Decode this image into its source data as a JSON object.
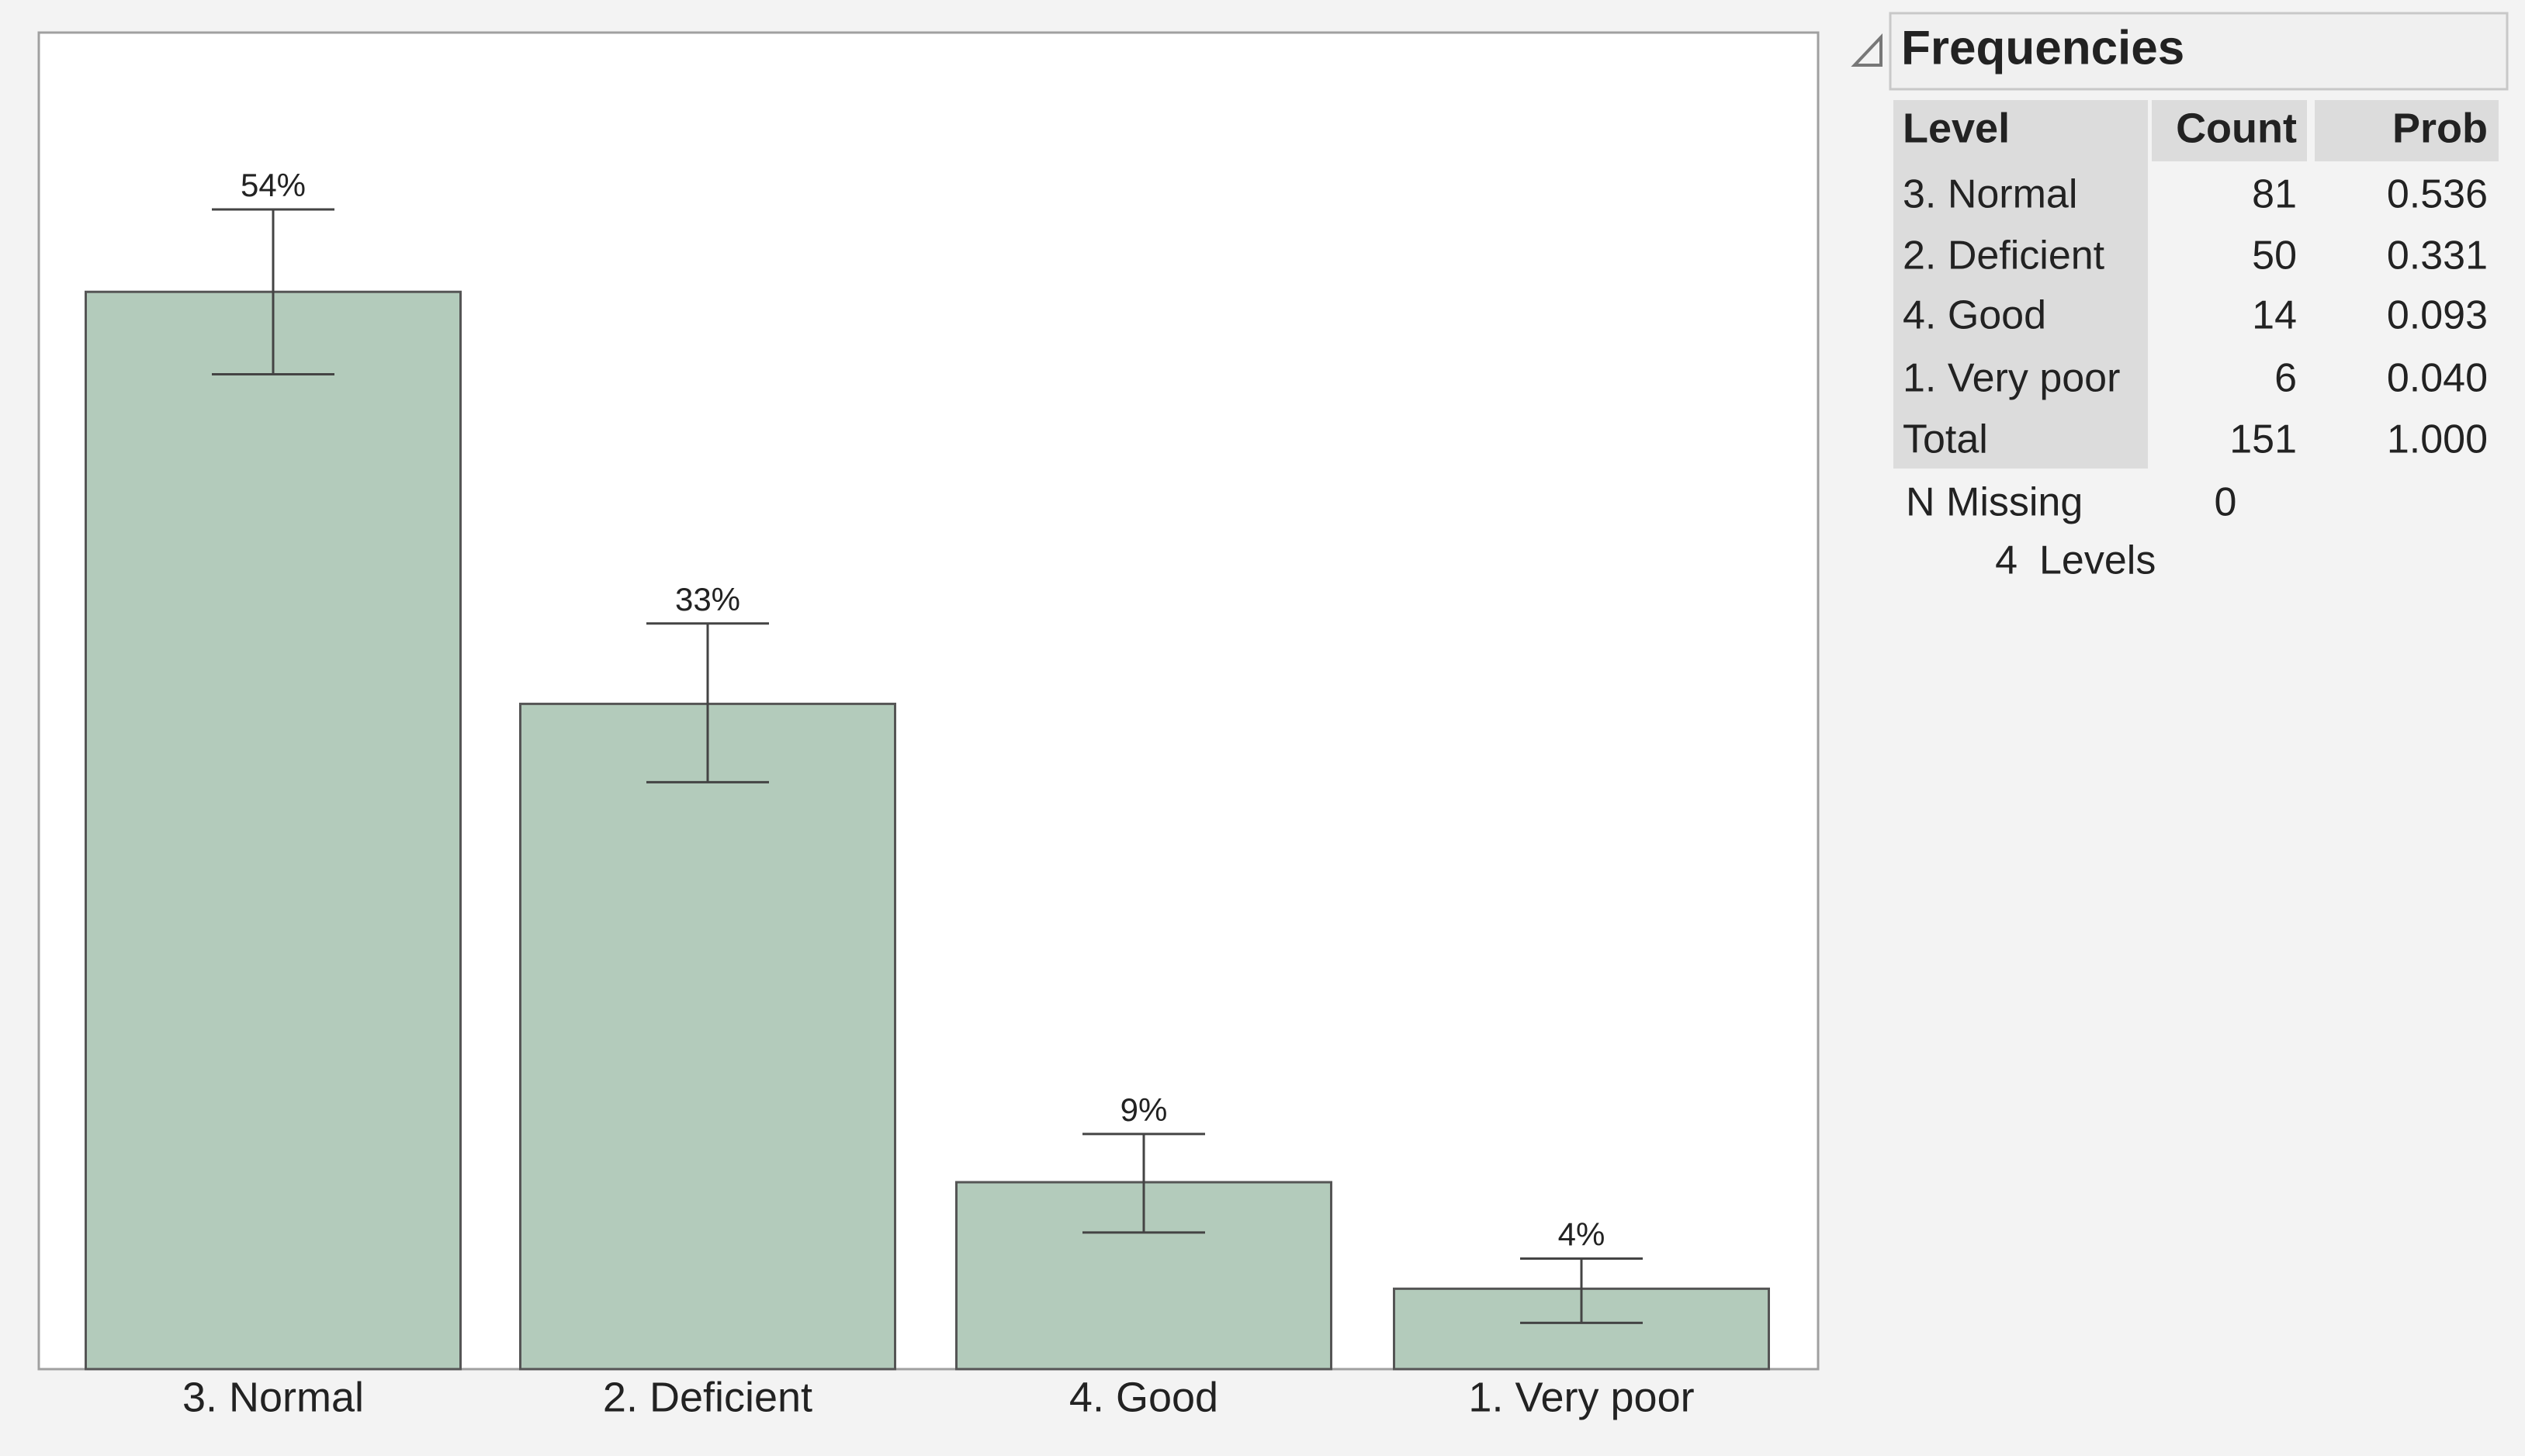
{
  "chart_data": {
    "type": "bar",
    "categories": [
      "3. Normal",
      "2. Deficient",
      "4. Good",
      "1. Very poor"
    ],
    "values": [
      53.6,
      33.1,
      9.3,
      4.0
    ],
    "value_labels": [
      "54%",
      "33%",
      "9%",
      "4%"
    ],
    "ci_lower": [
      49.5,
      29.2,
      6.8,
      2.3
    ],
    "ci_upper": [
      57.7,
      37.1,
      11.7,
      5.5
    ],
    "color": "#b3cbbb",
    "ylim": [
      0,
      66.5
    ]
  },
  "frequencies": {
    "title": "Frequencies",
    "columns": [
      "Level",
      "Count",
      "Prob"
    ],
    "rows": [
      [
        "3. Normal",
        81,
        "0.536"
      ],
      [
        "2. Deficient",
        50,
        "0.331"
      ],
      [
        "4. Good",
        14,
        "0.093"
      ],
      [
        "1. Very poor",
        6,
        "0.040"
      ],
      [
        "Total",
        151,
        "1.000"
      ]
    ],
    "n_missing": {
      "label": "N Missing",
      "value": 0
    },
    "levels": {
      "count": 4,
      "label": "Levels"
    }
  }
}
